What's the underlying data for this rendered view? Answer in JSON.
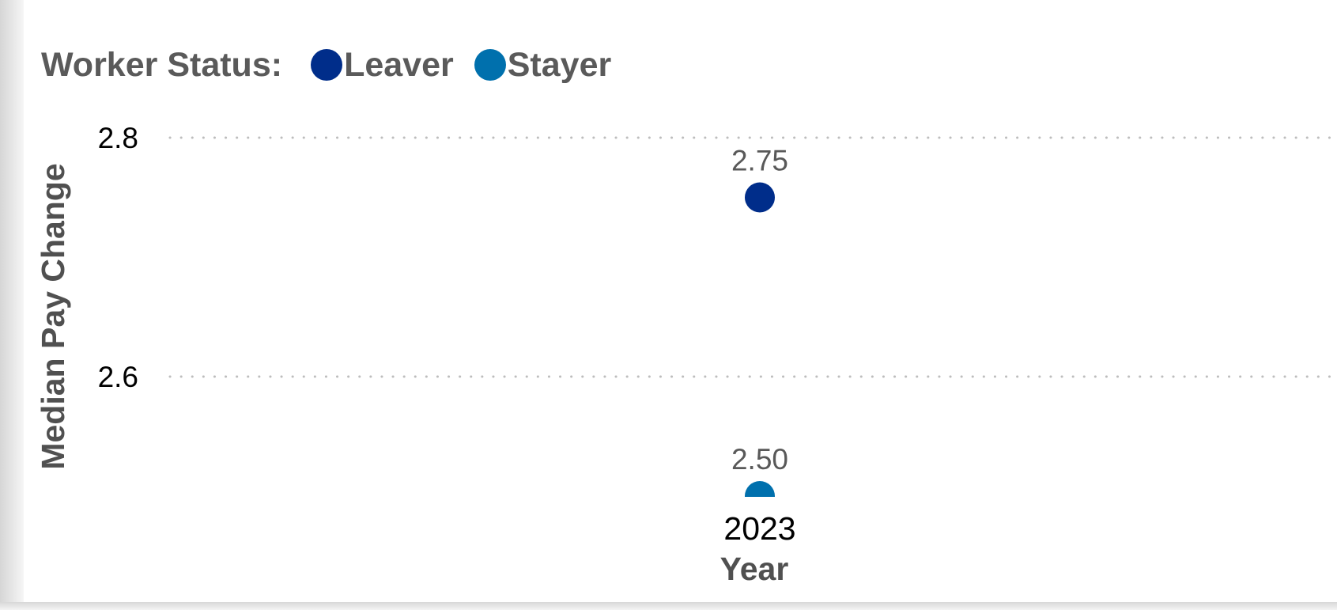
{
  "legend": {
    "title": "Worker Status:",
    "items": [
      {
        "label": "Leaver",
        "color": "#002d8a"
      },
      {
        "label": "Stayer",
        "color": "#0070ad"
      }
    ]
  },
  "chart_data": {
    "type": "scatter",
    "categories": [
      "2023"
    ],
    "series": [
      {
        "name": "Leaver",
        "values": [
          2.75
        ],
        "labels": [
          "2.75"
        ],
        "color": "#002d8a"
      },
      {
        "name": "Stayer",
        "values": [
          2.5
        ],
        "labels": [
          "2.50"
        ],
        "color": "#0070ad"
      }
    ],
    "xlabel": "Year",
    "ylabel": "Median Pay Change",
    "yticks": [
      {
        "value": 2.6,
        "label": "2.6"
      },
      {
        "value": 2.8,
        "label": "2.8"
      }
    ],
    "ylim": [
      2.5,
      2.8
    ],
    "grid": true,
    "legend_position": "top-left"
  }
}
